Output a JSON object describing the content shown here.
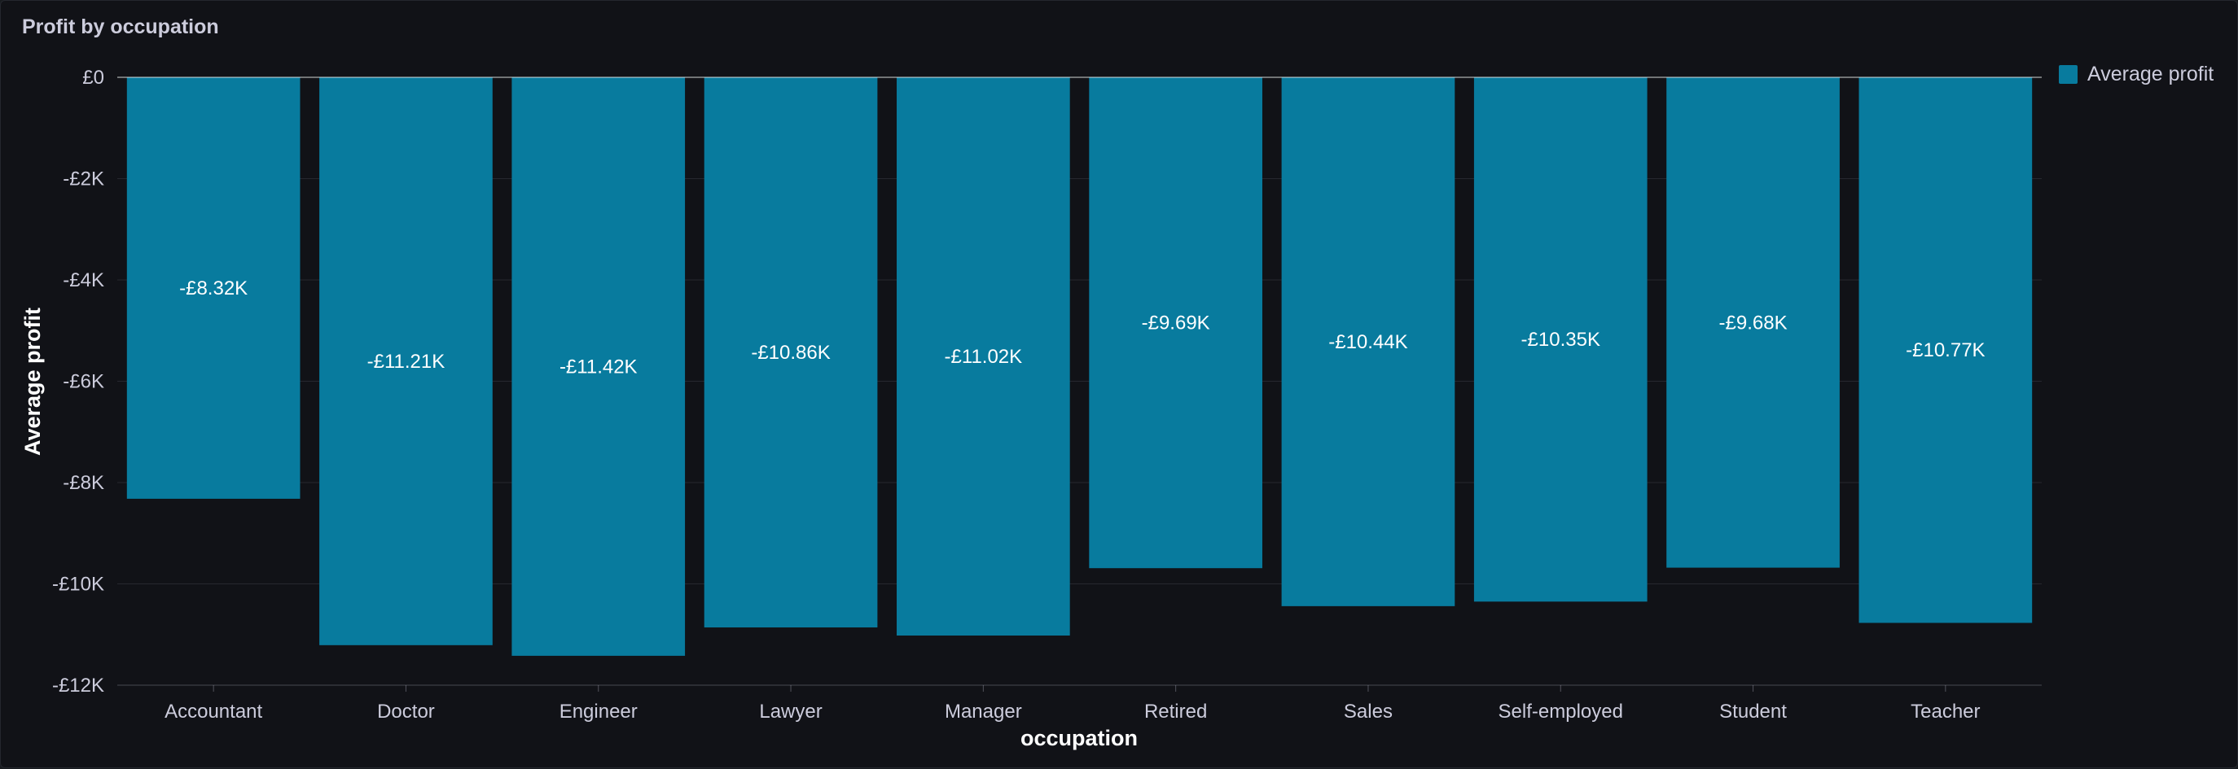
{
  "panel": {
    "title": "Profit by occupation"
  },
  "legend": {
    "items": [
      {
        "label": "Average profit",
        "color": "#087b9e"
      }
    ]
  },
  "chart_data": {
    "type": "bar",
    "title": "Profit by occupation",
    "xlabel": "occupation",
    "ylabel": "Average profit",
    "ylim": [
      -12000,
      0
    ],
    "yticks": [
      {
        "value": 0,
        "label": "£0"
      },
      {
        "value": -2000,
        "label": "-£2K"
      },
      {
        "value": -4000,
        "label": "-£4K"
      },
      {
        "value": -6000,
        "label": "-£6K"
      },
      {
        "value": -8000,
        "label": "-£8K"
      },
      {
        "value": -10000,
        "label": "-£10K"
      },
      {
        "value": -12000,
        "label": "-£12K"
      }
    ],
    "categories": [
      "Accountant",
      "Doctor",
      "Engineer",
      "Lawyer",
      "Manager",
      "Retired",
      "Sales",
      "Self-employed",
      "Student",
      "Teacher"
    ],
    "series": [
      {
        "name": "Average profit",
        "color": "#087b9e",
        "values": [
          -8320,
          -11210,
          -11420,
          -10860,
          -11020,
          -9690,
          -10440,
          -10350,
          -9680,
          -10770
        ],
        "labels": [
          "-£8.32K",
          "-£11.21K",
          "-£11.42K",
          "-£10.86K",
          "-£11.02K",
          "-£9.69K",
          "-£10.44K",
          "-£10.35K",
          "-£9.68K",
          "-£10.77K"
        ]
      }
    ],
    "grid": true,
    "legend_position": "top-right"
  }
}
